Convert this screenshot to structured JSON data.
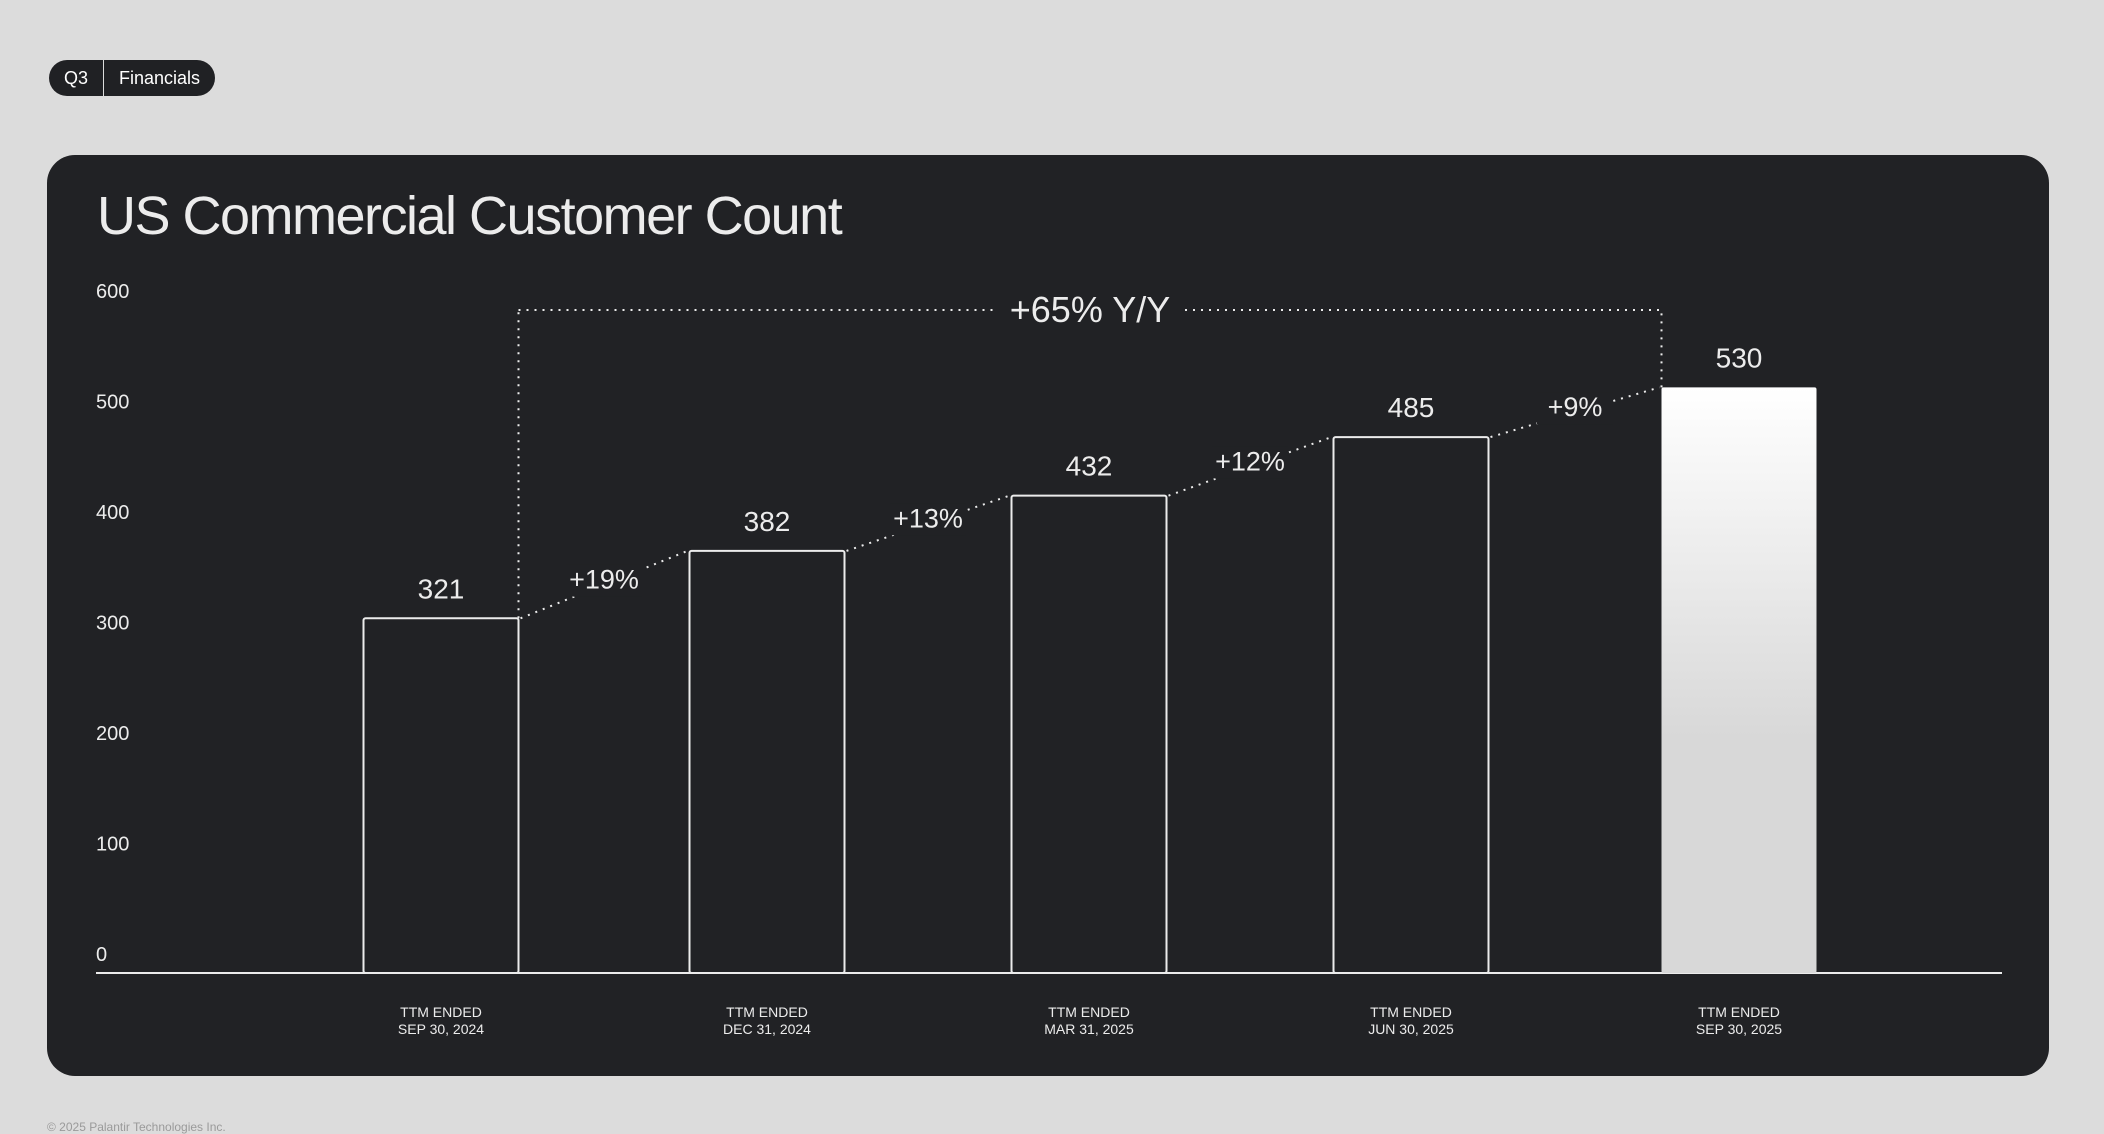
{
  "header": {
    "badge_left": "Q3",
    "badge_right": "Financials"
  },
  "title": "US Commercial Customer Count",
  "footer": "© 2025 Palantir Technologies Inc.",
  "colors": {
    "background": "#dcdcdc",
    "panel": "#212225",
    "text": "#ececec",
    "highlight_bar_top": "#ffffff",
    "highlight_bar_bottom": "#d8d8d8"
  },
  "chart_data": {
    "type": "bar",
    "title": "US Commercial Customer Count",
    "categories": [
      [
        "TTM ENDED",
        "SEP 30, 2024"
      ],
      [
        "TTM ENDED",
        "DEC 31, 2024"
      ],
      [
        "TTM ENDED",
        "MAR 31, 2025"
      ],
      [
        "TTM ENDED",
        "JUN 30, 2025"
      ],
      [
        "TTM ENDED",
        "SEP 30, 2025"
      ]
    ],
    "values": [
      321,
      382,
      432,
      485,
      530
    ],
    "value_labels": [
      "321",
      "382",
      "432",
      "485",
      "530"
    ],
    "growth_labels": [
      "+19%",
      "+13%",
      "+12%",
      "+9%"
    ],
    "yoy_label": "+65% Y/Y",
    "highlighted_index": 4,
    "ylim": [
      0,
      600
    ],
    "yticks": [
      "0",
      "100",
      "200",
      "300",
      "400",
      "500",
      "600"
    ],
    "grid": false
  }
}
